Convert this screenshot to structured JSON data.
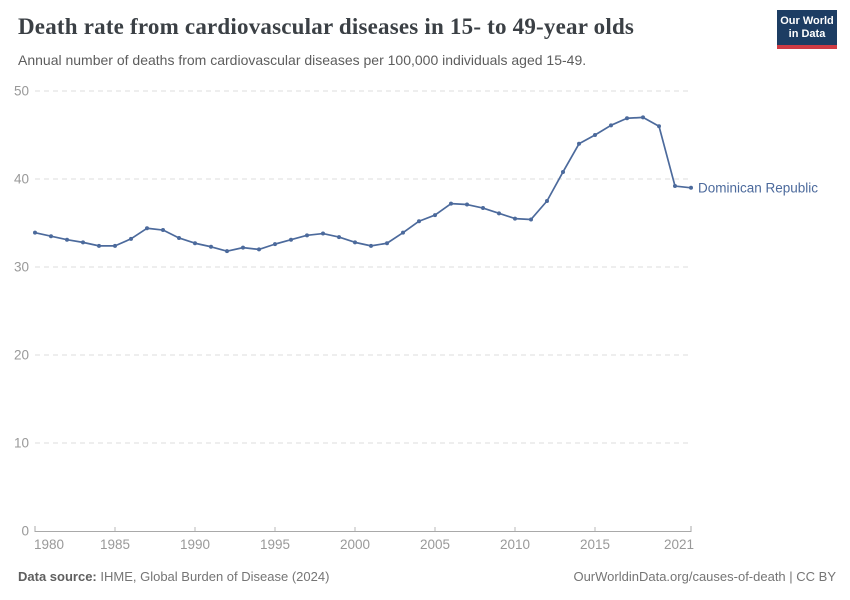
{
  "header": {
    "title": "Death rate from cardiovascular diseases in 15- to 49-year olds",
    "subtitle": "Annual number of deaths from cardiovascular diseases per 100,000 individuals aged 15-49.",
    "logo": {
      "line1": "Our World",
      "line2": "in Data"
    }
  },
  "colors": {
    "series_blue": "#4c6a9c",
    "grid_line": "#dcdcdc",
    "axis_line": "#a9a9a9",
    "tick_mark": "#b8b8b8",
    "tick_label": "#999999",
    "title_text": "#3b4045",
    "subtitle_text": "#5d5d5d",
    "footer_text": "#757575",
    "logo_bg": "#1d3d63",
    "logo_red": "#cf3b44"
  },
  "chart_data": {
    "type": "line",
    "title": "Death rate from cardiovascular diseases in 15- to 49-year olds",
    "subtitle": "Annual number of deaths from cardiovascular diseases per 100,000 individuals aged 15-49.",
    "xlabel": "",
    "ylabel": "",
    "xlim": [
      1980,
      2021
    ],
    "ylim": [
      0,
      50
    ],
    "x_ticks": [
      1980,
      1985,
      1990,
      1995,
      2000,
      2005,
      2010,
      2015,
      2021
    ],
    "y_ticks": [
      0,
      10,
      20,
      30,
      40,
      50
    ],
    "grid": "horizontal-dashed",
    "legend_position": "end-of-line",
    "series": [
      {
        "name": "Dominican Republic",
        "color": "#4c6a9c",
        "x": [
          1980,
          1981,
          1982,
          1983,
          1984,
          1985,
          1986,
          1987,
          1988,
          1989,
          1990,
          1991,
          1992,
          1993,
          1994,
          1995,
          1996,
          1997,
          1998,
          1999,
          2000,
          2001,
          2002,
          2003,
          2004,
          2005,
          2006,
          2007,
          2008,
          2009,
          2010,
          2011,
          2012,
          2013,
          2014,
          2015,
          2016,
          2017,
          2018,
          2019,
          2020,
          2021
        ],
        "values": [
          33.9,
          33.5,
          33.1,
          32.8,
          32.4,
          32.4,
          33.2,
          34.4,
          34.2,
          33.3,
          32.7,
          32.3,
          31.8,
          32.2,
          32.0,
          32.6,
          33.1,
          33.6,
          33.8,
          33.4,
          32.8,
          32.4,
          32.7,
          33.9,
          35.2,
          35.9,
          37.2,
          37.1,
          36.7,
          36.1,
          35.5,
          35.4,
          37.5,
          40.8,
          44.0,
          45.0,
          46.1,
          46.9,
          47.0,
          46.0,
          39.2,
          39.0
        ]
      }
    ]
  },
  "footer": {
    "source_label": "Data source:",
    "source_text": " IHME, Global Burden of Disease (2024)",
    "right_text": "OurWorldinData.org/causes-of-death | CC BY"
  }
}
